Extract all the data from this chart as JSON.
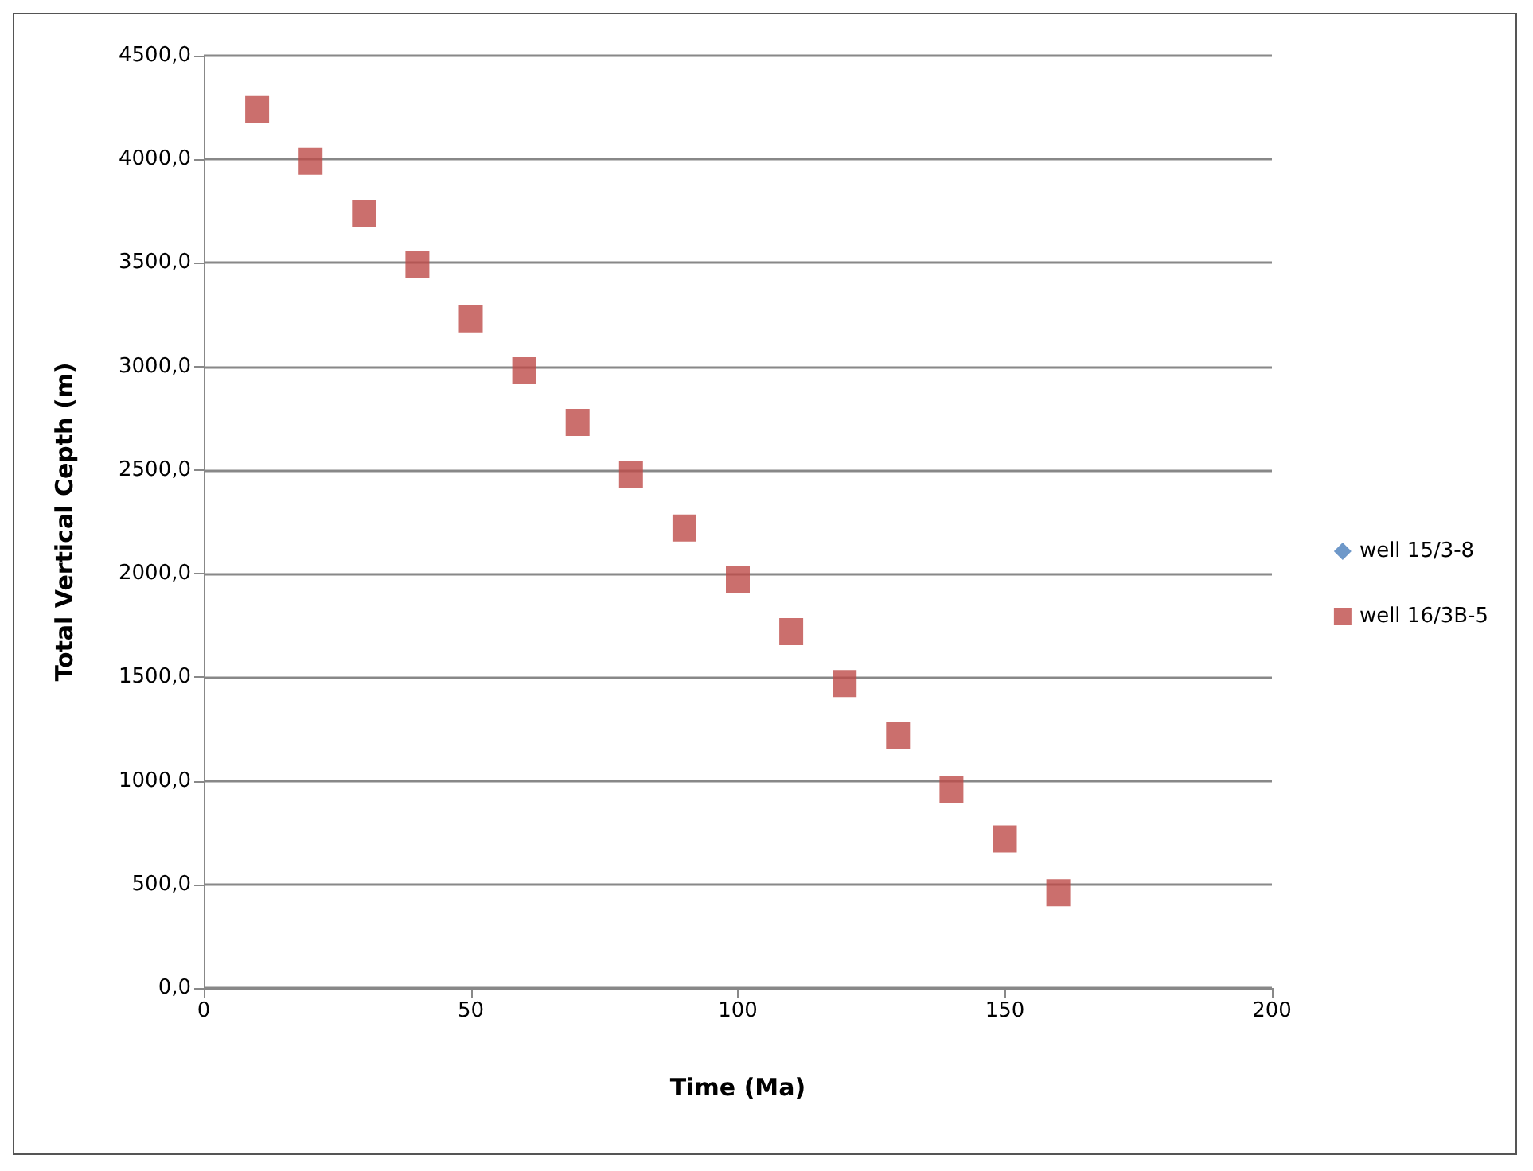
{
  "chart_data": {
    "type": "scatter",
    "xlabel": "Time (Ma)",
    "ylabel": "Total Vertical Cepth (m)",
    "x": [
      10,
      20,
      30,
      40,
      50,
      60,
      70,
      80,
      90,
      100,
      110,
      120,
      130,
      140,
      150,
      160
    ],
    "series": [
      {
        "name": "well 15/3-8",
        "color": "#4a7ebb",
        "marker": "diamond",
        "values": [
          null,
          null,
          null,
          null,
          null,
          null,
          null,
          null,
          null,
          null,
          null,
          null,
          null,
          null,
          null,
          null
        ]
      },
      {
        "name": "well 16/3B-5",
        "color": "#be4b48",
        "marker": "square",
        "values": [
          4240,
          3990,
          3740,
          3490,
          3230,
          2980,
          2730,
          2480,
          2220,
          1970,
          1720,
          1470,
          1220,
          960,
          720,
          460
        ]
      }
    ],
    "xlim": [
      0,
      200
    ],
    "xticks": [
      0,
      50,
      100,
      150,
      200
    ],
    "ylim": [
      0,
      4500
    ],
    "yticks": [
      {
        "value": 0,
        "label": "0,0"
      },
      {
        "value": 500,
        "label": "500,0"
      },
      {
        "value": 1000,
        "label": "1000,0"
      },
      {
        "value": 1500,
        "label": "1500,0"
      },
      {
        "value": 2000,
        "label": "2000,0"
      },
      {
        "value": 2500,
        "label": "2500,0"
      },
      {
        "value": 3000,
        "label": "3000,0"
      },
      {
        "value": 3500,
        "label": "3500,0"
      },
      {
        "value": 4000,
        "label": "4000,0"
      },
      {
        "value": 4500,
        "label": "4500,0"
      }
    ],
    "grid": "y",
    "legend": "right"
  }
}
